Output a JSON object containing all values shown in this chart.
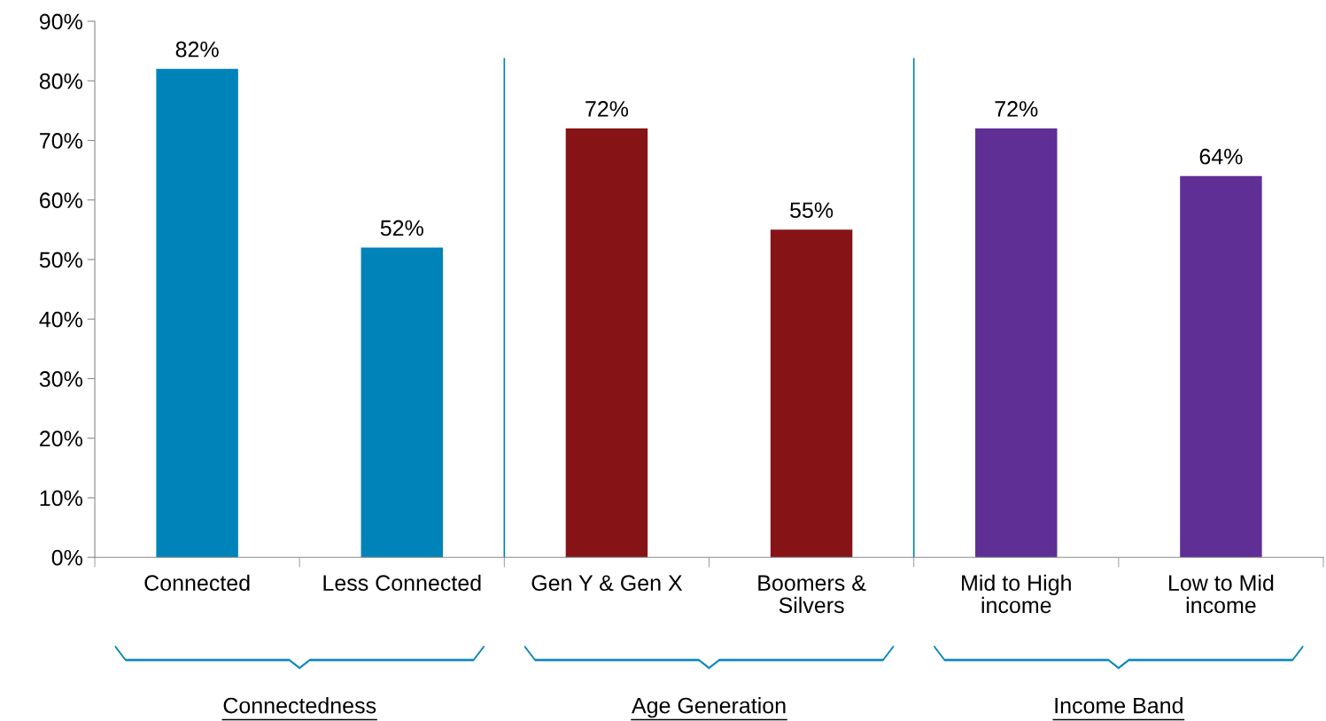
{
  "chart_data": {
    "type": "bar",
    "categories": [
      "Connected",
      "Less Connected",
      "Gen Y & Gen X",
      "Boomers &\nSilvers",
      "Mid to High\nincome",
      "Low to Mid\nincome"
    ],
    "values": [
      82,
      52,
      72,
      55,
      72,
      64
    ],
    "colors": [
      "#0083b8",
      "#0083b8",
      "#861416",
      "#861416",
      "#5f2f96",
      "#5f2f96"
    ],
    "value_labels": [
      "82%",
      "52%",
      "72%",
      "55%",
      "72%",
      "64%"
    ],
    "ylim": [
      0,
      90
    ],
    "yticks": [
      {
        "value": 0,
        "label": "0%"
      },
      {
        "value": 10,
        "label": "10%"
      },
      {
        "value": 20,
        "label": "20%"
      },
      {
        "value": 30,
        "label": "30%"
      },
      {
        "value": 40,
        "label": "40%"
      },
      {
        "value": 50,
        "label": "50%"
      },
      {
        "value": 60,
        "label": "60%"
      },
      {
        "value": 70,
        "label": "70%"
      },
      {
        "value": 80,
        "label": "80%"
      },
      {
        "value": 90,
        "label": "90%"
      }
    ],
    "annotations": [
      "Connectedness",
      "Age Generation",
      "Income Band"
    ],
    "grid": false
  }
}
